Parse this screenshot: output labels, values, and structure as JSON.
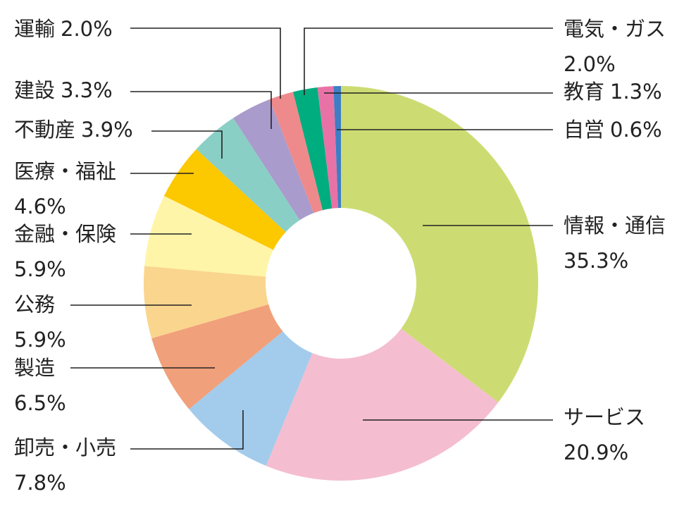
{
  "chart_data": {
    "type": "donut",
    "categories": [
      "情報・通信",
      "サービス",
      "卸売・小売",
      "製造",
      "公務",
      "金融・保険",
      "医療・福祉",
      "不動産",
      "建設",
      "運輸",
      "電気・ガス",
      "教育",
      "自営"
    ],
    "values": [
      35.3,
      20.9,
      7.8,
      6.5,
      5.9,
      5.9,
      4.6,
      3.9,
      3.3,
      2.0,
      2.0,
      1.3,
      0.6
    ],
    "value_labels": [
      "35.3%",
      "20.9%",
      "7.8%",
      "6.5%",
      "5.9%",
      "5.9%",
      "4.6%",
      "3.9%",
      "3.3%",
      "2.0%",
      "2.0%",
      "1.3%",
      "0.6%"
    ],
    "colors": [
      "#cddc72",
      "#f5bdd0",
      "#a3cbec",
      "#f0a07a",
      "#fad58e",
      "#fff5a8",
      "#fcc800",
      "#8acfc6",
      "#a99bcb",
      "#ee8a8c",
      "#00ad7e",
      "#e872a6",
      "#3d7ec4"
    ]
  }
}
